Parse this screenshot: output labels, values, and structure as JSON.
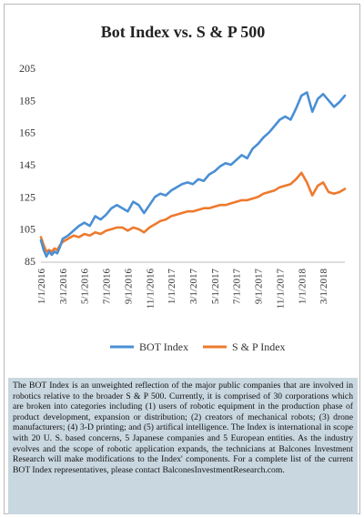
{
  "chart_data": {
    "type": "line",
    "title": "Bot Index vs. S & P 500",
    "xlabel": "",
    "ylabel": "",
    "ylim": [
      85,
      205
    ],
    "yticks": [
      85,
      105,
      125,
      145,
      165,
      185,
      205
    ],
    "xticks": [
      "1/1/2016",
      "3/1/2016",
      "5/1/2016",
      "7/1/2016",
      "9/1/2016",
      "11/1/2016",
      "1/1/2017",
      "3/1/2017",
      "5/1/2017",
      "7/1/2017",
      "9/1/2017",
      "11/1/2017",
      "1/1/2018",
      "3/1/2018"
    ],
    "xtick_months": [
      0,
      2,
      4,
      6,
      8,
      10,
      12,
      14,
      16,
      18,
      20,
      22,
      24,
      26
    ],
    "x_months": [
      0,
      0.25,
      0.5,
      0.75,
      1,
      1.25,
      1.5,
      1.75,
      2,
      2.5,
      3,
      3.5,
      4,
      4.5,
      5,
      5.5,
      6,
      6.5,
      7,
      7.5,
      8,
      8.5,
      9,
      9.5,
      10,
      10.5,
      11,
      11.5,
      12,
      12.5,
      13,
      13.5,
      14,
      14.5,
      15,
      15.5,
      16,
      16.5,
      17,
      17.5,
      18,
      18.5,
      19,
      19.5,
      20,
      20.5,
      21,
      21.5,
      22,
      22.5,
      23,
      23.5,
      24,
      24.5,
      25,
      25.5,
      26,
      26.5,
      27,
      27.5,
      28
    ],
    "legend": "bottom",
    "grid": false,
    "series": [
      {
        "name": "BOT Index",
        "color": "#4a8fd4",
        "values": [
          98,
          92,
          88,
          91,
          89,
          91,
          90,
          94,
          99,
          101,
          104,
          107,
          109,
          107,
          113,
          111,
          114,
          118,
          120,
          118,
          116,
          122,
          120,
          115,
          120,
          125,
          127,
          126,
          129,
          131,
          133,
          134,
          133,
          136,
          135,
          139,
          141,
          144,
          146,
          145,
          148,
          151,
          149,
          155,
          158,
          162,
          165,
          169,
          173,
          175,
          173,
          180,
          188,
          190,
          178,
          186,
          189,
          185,
          181,
          184,
          188
        ]
      },
      {
        "name": "S & P Index",
        "color": "#ee7a2e",
        "values": [
          100,
          95,
          91,
          92,
          91,
          93,
          92,
          95,
          97,
          99,
          101,
          100,
          102,
          101,
          103,
          102,
          104,
          105,
          106,
          106,
          104,
          106,
          105,
          103,
          106,
          108,
          110,
          111,
          113,
          114,
          115,
          116,
          116,
          117,
          118,
          118,
          119,
          120,
          120,
          121,
          122,
          123,
          123,
          124,
          125,
          127,
          128,
          129,
          131,
          132,
          133,
          136,
          140,
          134,
          126,
          132,
          134,
          128,
          127,
          128,
          130
        ]
      }
    ]
  },
  "caption": {
    "text": "The BOT Index is an unweighted reflection of the major public companies that are involved in robotics relative to the broader S & P 500. Currently, it is comprised of 30 corporations which are broken into categories including (1) users of robotic equipment in the production phase of product development, expansion or distribution; (2) creators of mechanical robots; (3) drone manufacturers; (4) 3-D printing; and (5) artifical intelligence. The Index is international in scope with 20 U. S. based concerns, 5 Japanese companies and 5 European entities. As the industry evolves and the scope of robotic application expands, the technicians at Balcones Investment Research will make modifications to the Index' components. For a complete list of the current BOT Index representatives, please contact BalconesInvestmentResearch.com."
  }
}
